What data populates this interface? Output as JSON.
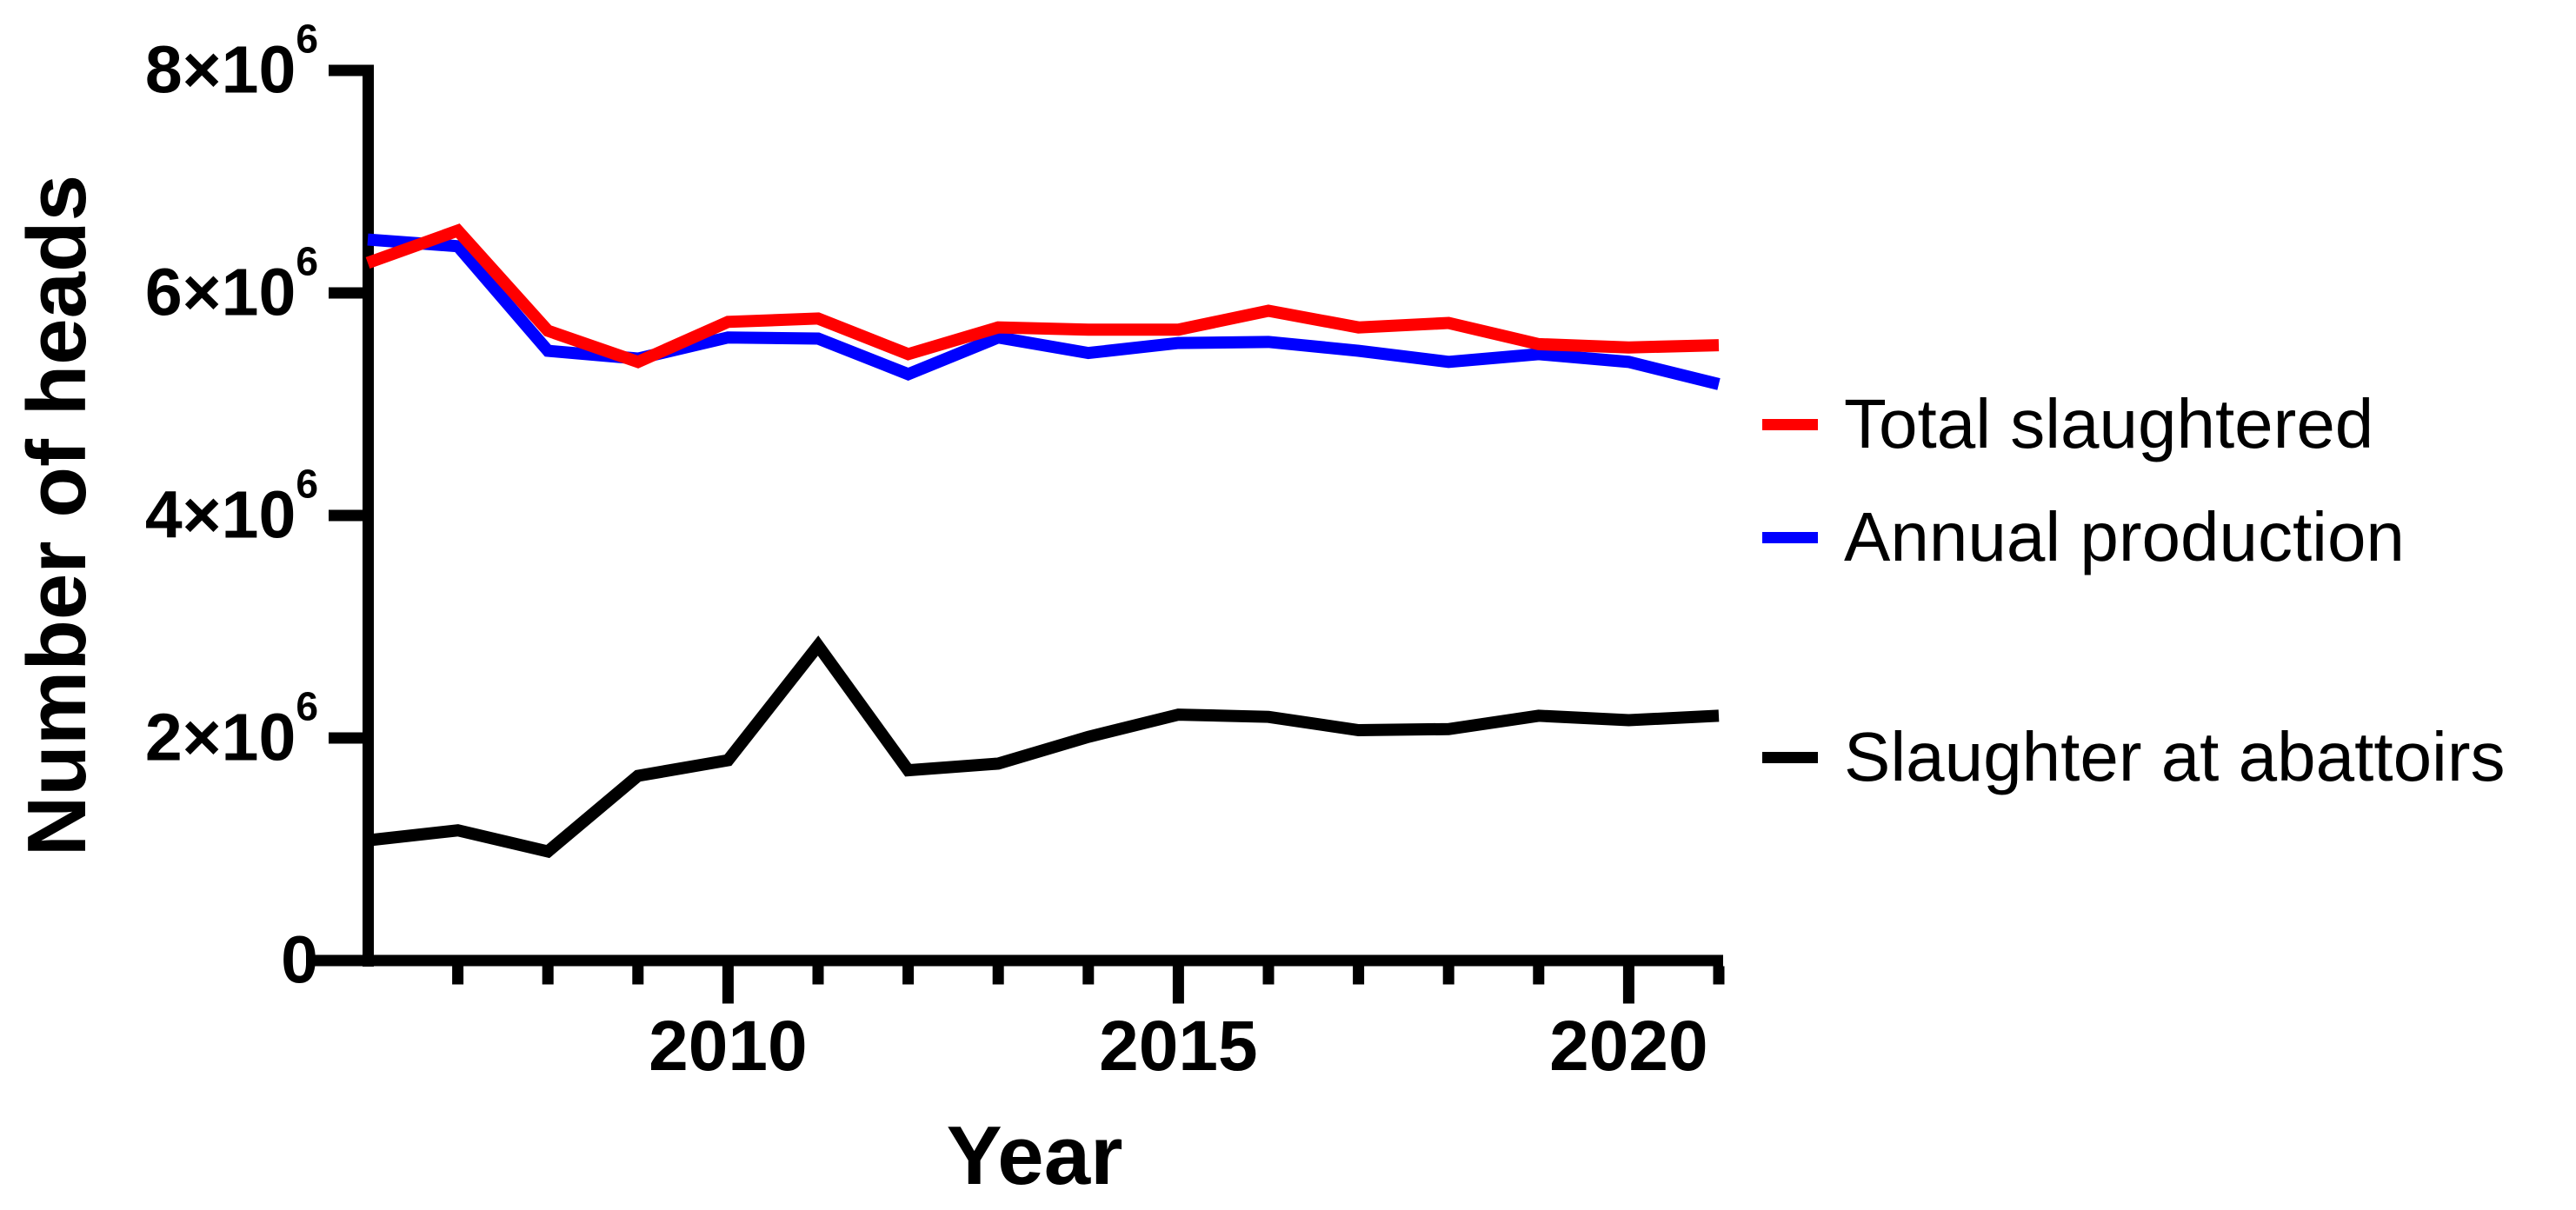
{
  "chart_data": {
    "type": "line",
    "title": "",
    "xlabel": "Year",
    "ylabel": "Number of heads",
    "x": [
      2006,
      2007,
      2008,
      2009,
      2010,
      2011,
      2012,
      2013,
      2014,
      2015,
      2016,
      2017,
      2018,
      2019,
      2020,
      2021
    ],
    "series": [
      {
        "name": "Total slaughtered",
        "color": "#FF0000",
        "values": [
          6270000,
          6560000,
          5660000,
          5380000,
          5740000,
          5770000,
          5450000,
          5690000,
          5670000,
          5670000,
          5840000,
          5690000,
          5730000,
          5540000,
          5510000,
          5530000
        ]
      },
      {
        "name": "Annual production",
        "color": "#0000FF",
        "values": [
          6480000,
          6420000,
          5480000,
          5410000,
          5600000,
          5590000,
          5270000,
          5600000,
          5460000,
          5550000,
          5560000,
          5480000,
          5380000,
          5450000,
          5380000,
          5180000
        ]
      },
      {
        "name": "Slaughter at abattoirs",
        "color": "#000000",
        "values": [
          1080000,
          1170000,
          980000,
          1660000,
          1800000,
          2830000,
          1710000,
          1770000,
          2010000,
          2210000,
          2190000,
          2070000,
          2080000,
          2200000,
          2160000,
          2200000
        ]
      }
    ],
    "ylim": [
      0,
      8000000
    ],
    "yticks": [
      {
        "value": 8000000,
        "base": "8×10",
        "sup": "6"
      },
      {
        "value": 6000000,
        "base": "6×10",
        "sup": "6"
      },
      {
        "value": 4000000,
        "base": "4×10",
        "sup": "6"
      },
      {
        "value": 2000000,
        "base": "2×10",
        "sup": "6"
      },
      {
        "value": 0,
        "base": "0",
        "sup": ""
      }
    ],
    "xticks_major": [
      2010,
      2015,
      2020
    ],
    "xticks_minor": [
      2007,
      2008,
      2009,
      2010,
      2011,
      2012,
      2013,
      2014,
      2015,
      2016,
      2017,
      2018,
      2019,
      2020,
      2021
    ],
    "grid": false,
    "legend_position": "right",
    "axis_color": "#000000"
  }
}
